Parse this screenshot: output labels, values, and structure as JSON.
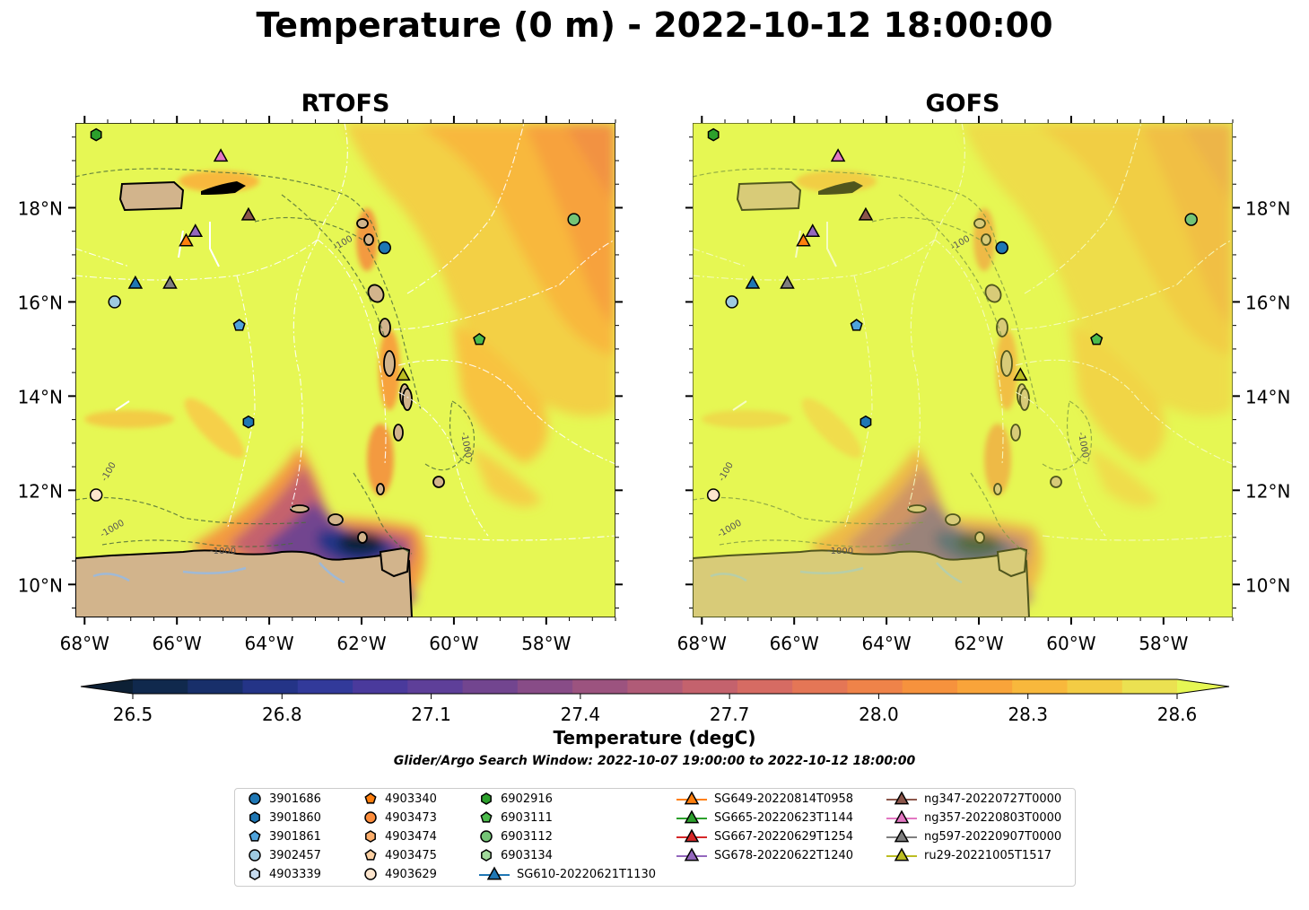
{
  "title": "Temperature (0 m) - 2022-10-12 18:00:00",
  "panels": [
    {
      "title": "RTOFS"
    },
    {
      "title": "GOFS"
    }
  ],
  "axes": {
    "lon_ticks": [
      "68°W",
      "66°W",
      "64°W",
      "62°W",
      "60°W",
      "58°W"
    ],
    "lat_ticks": [
      "18°N",
      "16°N",
      "14°N",
      "12°N",
      "10°N"
    ],
    "lon_range": [
      -68.2,
      -56.5
    ],
    "lat_range": [
      9.3,
      19.8
    ]
  },
  "bathymetry_labels": [
    "-100",
    "-1000",
    "-1000",
    "-100",
    "-1000"
  ],
  "colorbar": {
    "label": "Temperature (degC)",
    "ticks": [
      "26.5",
      "26.8",
      "27.1",
      "27.4",
      "27.7",
      "28.0",
      "28.3",
      "28.6"
    ],
    "range": [
      26.5,
      28.6
    ],
    "colors": [
      "#0d2035",
      "#10294d",
      "#182f6a",
      "#243487",
      "#323a9a",
      "#4a3a9c",
      "#5e3f99",
      "#72458f",
      "#884c87",
      "#9c537f",
      "#b05b77",
      "#c4626d",
      "#d66b63",
      "#e47656",
      "#ef8349",
      "#f6923d",
      "#f9a43a",
      "#f8b83c",
      "#f3cc44",
      "#ebe151",
      "#e6f754"
    ]
  },
  "search_window": "Glider/Argo Search Window: 2022-10-07 19:00:00 to 2022-10-12 18:00:00",
  "legend": [
    {
      "label": "3901686",
      "marker": "circle",
      "color": "#1f77b4"
    },
    {
      "label": "3901860",
      "marker": "hexagon",
      "color": "#1f77b4"
    },
    {
      "label": "3901861",
      "marker": "pentagon",
      "color": "#4fa3dc"
    },
    {
      "label": "3902457",
      "marker": "circle",
      "color": "#9ecae1"
    },
    {
      "label": "4903339",
      "marker": "hexagon",
      "color": "#c6dbef"
    },
    {
      "label": "4903340",
      "marker": "pentagon",
      "color": "#ff7f0e"
    },
    {
      "label": "4903473",
      "marker": "circle",
      "color": "#fd8d3c"
    },
    {
      "label": "4903474",
      "marker": "hexagon",
      "color": "#fdae6b"
    },
    {
      "label": "4903475",
      "marker": "pentagon",
      "color": "#fdd0a2"
    },
    {
      "label": "4903629",
      "marker": "circle",
      "color": "#fee6ce"
    },
    {
      "label": "6902916",
      "marker": "hexagon",
      "color": "#2ca02c"
    },
    {
      "label": "6903111",
      "marker": "pentagon",
      "color": "#4cbb4c"
    },
    {
      "label": "6903112",
      "marker": "circle",
      "color": "#74c476"
    },
    {
      "label": "6903134",
      "marker": "hexagon",
      "color": "#a1d99b"
    },
    {
      "label": "SG610-20220621T1130",
      "marker": "triangle-line",
      "color": "#1f77b4"
    },
    {
      "label": "SG649-20220814T0958",
      "marker": "triangle-line",
      "color": "#ff7f0e"
    },
    {
      "label": "SG665-20220623T1144",
      "marker": "triangle-line",
      "color": "#2ca02c"
    },
    {
      "label": "SG667-20220629T1254",
      "marker": "triangle-line",
      "color": "#d62728"
    },
    {
      "label": "SG678-20220622T1240",
      "marker": "triangle-line",
      "color": "#9467bd"
    },
    {
      "label": "ng347-20220727T0000",
      "marker": "triangle-line",
      "color": "#8c564b"
    },
    {
      "label": "ng357-20220803T0000",
      "marker": "triangle-line",
      "color": "#e377c2"
    },
    {
      "label": "ng597-20220907T0000",
      "marker": "triangle-line",
      "color": "#7f7f7f"
    },
    {
      "label": "ru29-20221005T1517",
      "marker": "triangle-line",
      "color": "#bcbd22"
    }
  ],
  "markers": [
    {
      "lon": -67.75,
      "lat": 19.55,
      "shape": "hexagon",
      "color": "#2ca02c"
    },
    {
      "lon": -65.05,
      "lat": 19.1,
      "shape": "triangle",
      "color": "#e377c2"
    },
    {
      "lon": -64.45,
      "lat": 17.85,
      "shape": "triangle",
      "color": "#8c564b"
    },
    {
      "lon": -65.6,
      "lat": 17.5,
      "shape": "triangle",
      "color": "#9467bd"
    },
    {
      "lon": -65.8,
      "lat": 17.3,
      "shape": "triangle",
      "color": "#ff7f0e"
    },
    {
      "lon": -61.5,
      "lat": 17.15,
      "shape": "circle",
      "color": "#1f77b4"
    },
    {
      "lon": -57.4,
      "lat": 17.75,
      "shape": "circle",
      "color": "#74c476"
    },
    {
      "lon": -66.9,
      "lat": 16.4,
      "shape": "triangle",
      "color": "#1f77b4"
    },
    {
      "lon": -66.15,
      "lat": 16.4,
      "shape": "triangle",
      "color": "#7f7f7f"
    },
    {
      "lon": -67.35,
      "lat": 16.0,
      "shape": "circle",
      "color": "#9ecae1"
    },
    {
      "lon": -64.65,
      "lat": 15.5,
      "shape": "pentagon",
      "color": "#4fa3dc"
    },
    {
      "lon": -59.45,
      "lat": 15.2,
      "shape": "pentagon",
      "color": "#4cbb4c"
    },
    {
      "lon": -61.1,
      "lat": 14.45,
      "shape": "triangle",
      "color": "#bcbd22"
    },
    {
      "lon": -64.45,
      "lat": 13.45,
      "shape": "hexagon",
      "color": "#1f77b4"
    },
    {
      "lon": -67.75,
      "lat": 11.9,
      "shape": "circle",
      "color": "#fee6ce"
    }
  ]
}
